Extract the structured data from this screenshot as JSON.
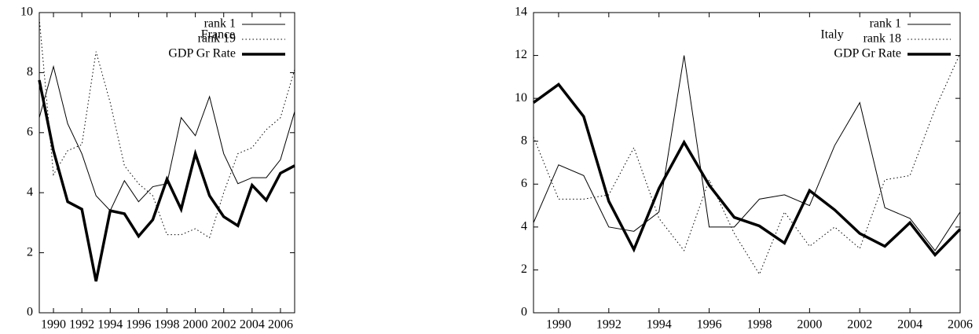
{
  "chart_data": [
    {
      "type": "line",
      "title": "France",
      "x": [
        1989,
        1990,
        1991,
        1992,
        1993,
        1994,
        1995,
        1996,
        1997,
        1998,
        1999,
        2000,
        2001,
        2002,
        2003,
        2004,
        2005,
        2006,
        2007
      ],
      "xlim": [
        1989,
        2007
      ],
      "xticks": [
        1990,
        1992,
        1994,
        1996,
        1998,
        2000,
        2002,
        2004,
        2006
      ],
      "ylim": [
        0,
        10
      ],
      "yticks": [
        0,
        2,
        4,
        6,
        8,
        10
      ],
      "legend": "top-right",
      "series": [
        {
          "name": "rank 1",
          "color": "#000000",
          "style": "thin",
          "values": [
            6.5,
            8.2,
            6.3,
            5.3,
            3.9,
            3.4,
            4.4,
            3.7,
            4.2,
            4.3,
            6.5,
            5.9,
            7.2,
            5.3,
            4.3,
            4.5,
            4.5,
            5.1,
            6.7
          ]
        },
        {
          "name": "rank 19",
          "color": "#000000",
          "style": "dotted",
          "values": [
            9.8,
            4.6,
            5.4,
            5.6,
            8.7,
            7.0,
            4.9,
            4.3,
            3.9,
            2.6,
            2.6,
            2.8,
            2.5,
            4.0,
            5.3,
            5.5,
            6.1,
            6.5,
            8.1
          ]
        },
        {
          "name": "GDP Gr Rate",
          "color": "#000000",
          "style": "thick",
          "values": [
            7.75,
            5.4,
            3.7,
            3.45,
            1.05,
            3.4,
            3.3,
            2.55,
            3.1,
            4.45,
            3.45,
            5.3,
            3.9,
            3.2,
            2.9,
            4.25,
            3.75,
            4.65,
            4.9
          ]
        }
      ]
    },
    {
      "type": "line",
      "title": "Italy",
      "x": [
        1989,
        1990,
        1991,
        1992,
        1993,
        1994,
        1995,
        1996,
        1997,
        1998,
        1999,
        2000,
        2001,
        2002,
        2003,
        2004,
        2005,
        2006
      ],
      "xlim": [
        1989,
        2006
      ],
      "xticks": [
        1990,
        1992,
        1994,
        1996,
        1998,
        2000,
        2002,
        2004,
        2006
      ],
      "ylim": [
        0,
        14
      ],
      "yticks": [
        0,
        2,
        4,
        6,
        8,
        10,
        12,
        14
      ],
      "legend": "top-right",
      "series": [
        {
          "name": "rank 1",
          "color": "#000000",
          "style": "thin",
          "values": [
            4.2,
            6.9,
            6.4,
            4.0,
            3.8,
            4.7,
            12.0,
            4.0,
            4.0,
            5.3,
            5.5,
            5.0,
            7.8,
            9.8,
            4.9,
            4.4,
            2.9,
            4.7
          ]
        },
        {
          "name": "rank 18",
          "color": "#000000",
          "style": "dotted",
          "values": [
            8.2,
            5.3,
            5.3,
            5.5,
            7.7,
            4.4,
            2.9,
            6.2,
            3.7,
            1.8,
            4.7,
            3.1,
            4.0,
            3.0,
            6.2,
            6.4,
            9.5,
            12.1
          ]
        },
        {
          "name": "GDP Gr Rate",
          "color": "#000000",
          "style": "thick",
          "values": [
            9.8,
            10.65,
            9.15,
            5.2,
            2.95,
            5.8,
            7.95,
            5.95,
            4.45,
            4.05,
            3.25,
            5.7,
            4.8,
            3.7,
            3.1,
            4.2,
            2.7,
            3.9
          ]
        }
      ]
    }
  ]
}
